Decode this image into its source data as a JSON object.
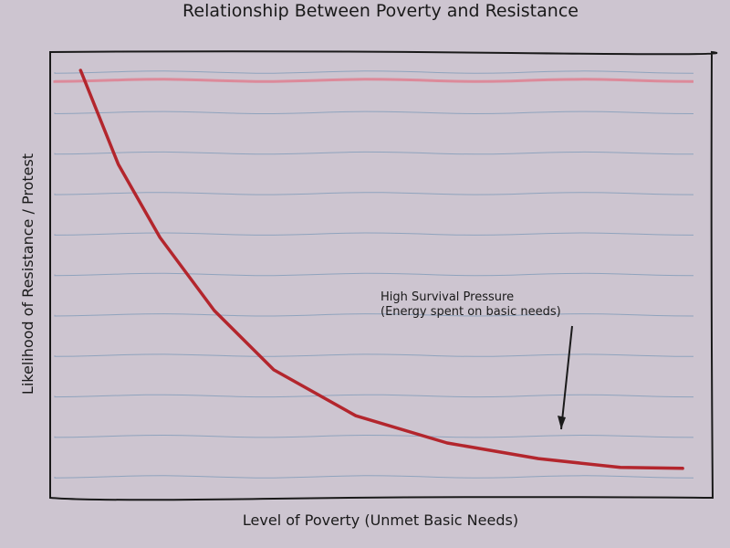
{
  "chart_data": {
    "type": "line",
    "title": "Relationship Between Poverty and Resistance",
    "x_label": "Level of Poverty (Unmet Basic Needs)",
    "y_label": "Likelihood of Resistance / Protest",
    "x": [
      0.46,
      1.03,
      1.66,
      2.48,
      3.38,
      4.62,
      6.0,
      7.38,
      8.62,
      9.56
    ],
    "series": [
      {
        "color": "#b3262d",
        "values": [
          9.59,
          7.48,
          5.84,
          4.2,
          2.87,
          1.84,
          1.23,
          0.88,
          0.68,
          0.66
        ]
      }
    ],
    "xlim": [
      0,
      10
    ],
    "ylim": [
      0,
      10
    ],
    "annotation": [
      "High Survival Pressure",
      "(Energy spent on basic needs)"
    ]
  }
}
